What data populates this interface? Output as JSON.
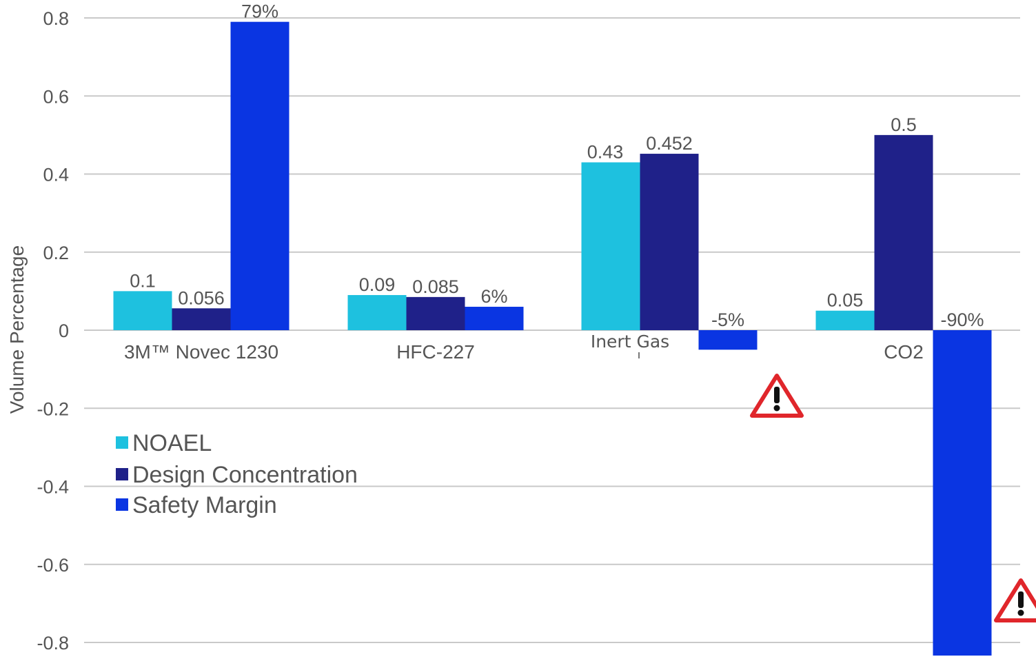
{
  "chart_data": {
    "type": "bar",
    "ylabel": "Volume Percentage",
    "ylim": [
      -0.8,
      0.8
    ],
    "yticks": [
      "0.8",
      "0.6",
      "0.4",
      "0.2",
      "0",
      "-0.2",
      "-0.4",
      "-0.6",
      "-0.8"
    ],
    "ytick_values": [
      0.8,
      0.6,
      0.4,
      0.2,
      0,
      -0.2,
      -0.4,
      -0.6,
      -0.8
    ],
    "grid": true,
    "legend_position": "lower-left",
    "categories": [
      "3M™ Novec 1230",
      "HFC-227",
      "Inert Gas",
      "CO2"
    ],
    "series": [
      {
        "name": "NOAEL",
        "color": "#1ec1df",
        "values": [
          0.1,
          0.09,
          0.43,
          0.05
        ],
        "labels": [
          "0.1",
          "0.09",
          "0.43",
          "0.05"
        ]
      },
      {
        "name": "Design Concentration",
        "color": "#1f2189",
        "values": [
          0.056,
          0.085,
          0.452,
          0.5
        ],
        "labels": [
          "0.056",
          "0.085",
          "0.452",
          "0.5"
        ]
      },
      {
        "name": "Safety Margin",
        "color": "#0a35e2",
        "values": [
          0.79,
          0.06,
          -0.05,
          -0.9
        ],
        "labels": [
          "79%",
          "6%",
          "-5%",
          "-90%"
        ]
      }
    ],
    "warning_markers": [
      {
        "category": "Inert Gas",
        "icon": "warning-triangle-icon",
        "color": "#e0262b"
      },
      {
        "category": "CO2",
        "icon": "warning-triangle-icon",
        "color": "#e0262b"
      }
    ]
  }
}
